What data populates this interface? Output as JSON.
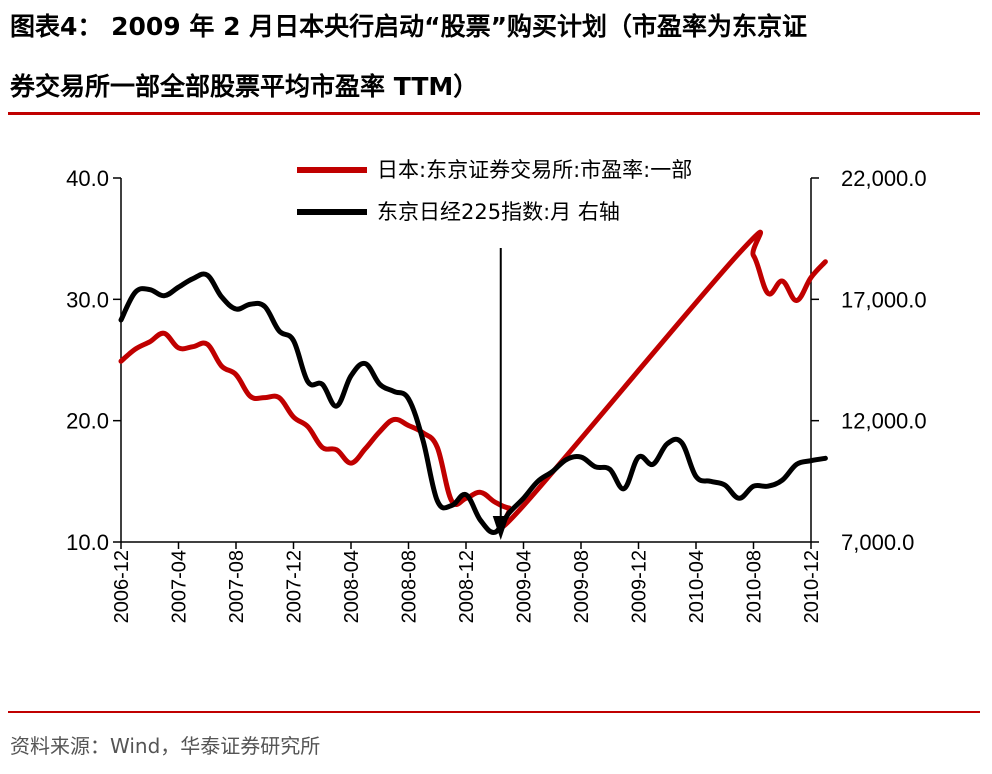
{
  "header": {
    "title_line1": "图表4： 2009 年 2 月日本央行启动“股票”购买计划（市盈率为东京证",
    "title_line2": "券交易所一部全部股票平均市盈率 TTM）"
  },
  "footer": {
    "source": "资料来源：Wind，华泰证券研究所"
  },
  "colors": {
    "accent_rule": "#c00000",
    "series_pe": "#c00000",
    "series_nikkei": "#000000"
  },
  "chart_data": {
    "type": "line",
    "title": "",
    "xlabel": "",
    "ylabel_left": "",
    "ylabel_right": "",
    "x_tick_labels": [
      "2006-12",
      "2007-04",
      "2007-08",
      "2007-12",
      "2008-04",
      "2008-08",
      "2008-12",
      "2009-04",
      "2009-08",
      "2009-12",
      "2010-04",
      "2010-08",
      "2010-12"
    ],
    "ylim_left": [
      10,
      40
    ],
    "ylim_right": [
      7000,
      22000
    ],
    "y_ticks_left": [
      "10.0",
      "20.0",
      "30.0",
      "40.0"
    ],
    "y_ticks_right": [
      "7,000.0",
      "12,000.0",
      "17,000.0",
      "22,000.0"
    ],
    "legend_position": "top-center",
    "grid": false,
    "annotation": {
      "type": "vertical-arrow",
      "x": "2009-02"
    },
    "series": [
      {
        "name": "日本:东京证券交易所:市盈率:一部",
        "axis": "left",
        "color": "#c00000",
        "x": [
          "2006-12",
          "2007-01",
          "2007-02",
          "2007-03",
          "2007-04",
          "2007-05",
          "2007-06",
          "2007-07",
          "2007-08",
          "2007-09",
          "2007-10",
          "2007-11",
          "2007-12",
          "2008-01",
          "2008-02",
          "2008-03",
          "2008-04",
          "2008-05",
          "2008-06",
          "2008-07",
          "2008-08",
          "2008-09",
          "2008-10",
          "2008-11",
          "2008-12",
          "2009-01",
          "2009-02",
          "2009-03",
          "2009-04",
          "2010-07",
          "2010-08",
          "2010-09",
          "2010-10",
          "2010-11",
          "2010-12",
          "2011-01"
        ],
        "values": [
          24.9,
          25.9,
          26.5,
          27.2,
          26.0,
          26.1,
          26.3,
          24.5,
          23.8,
          22.0,
          21.9,
          21.9,
          20.3,
          19.5,
          17.8,
          17.6,
          16.5,
          17.7,
          19.1,
          20.1,
          19.6,
          19.0,
          17.8,
          13.4,
          13.6,
          14.1,
          13.3,
          12.8,
          13.0,
          33.8,
          33.6,
          30.5,
          31.5,
          29.9,
          31.8,
          33.1
        ]
      },
      {
        "name": "东京日经225指数:月 右轴",
        "axis": "right",
        "color": "#000000",
        "x": [
          "2006-12",
          "2007-01",
          "2007-02",
          "2007-03",
          "2007-04",
          "2007-05",
          "2007-06",
          "2007-07",
          "2007-08",
          "2007-09",
          "2007-10",
          "2007-11",
          "2007-12",
          "2008-01",
          "2008-02",
          "2008-03",
          "2008-04",
          "2008-05",
          "2008-06",
          "2008-07",
          "2008-08",
          "2008-09",
          "2008-10",
          "2008-11",
          "2008-12",
          "2009-01",
          "2009-02",
          "2009-03",
          "2009-04",
          "2009-05",
          "2009-06",
          "2009-07",
          "2009-08",
          "2009-09",
          "2009-10",
          "2009-11",
          "2009-12",
          "2010-01",
          "2010-02",
          "2010-03",
          "2010-04",
          "2010-05",
          "2010-06",
          "2010-07",
          "2010-08",
          "2010-09",
          "2010-10",
          "2010-11",
          "2010-12",
          "2011-01"
        ],
        "values": [
          16150,
          17300,
          17400,
          17150,
          17500,
          17850,
          18000,
          17100,
          16600,
          16800,
          16700,
          15700,
          15300,
          13600,
          13500,
          12600,
          13850,
          14350,
          13500,
          13200,
          12900,
          11200,
          8700,
          8500,
          8950,
          7900,
          7400,
          8200,
          8800,
          9500,
          9900,
          10400,
          10500,
          10100,
          10000,
          9200,
          10500,
          10200,
          11050,
          11100,
          9700,
          9500,
          9350,
          8800,
          9300,
          9300,
          9550,
          10200,
          10350,
          10450
        ]
      }
    ]
  }
}
